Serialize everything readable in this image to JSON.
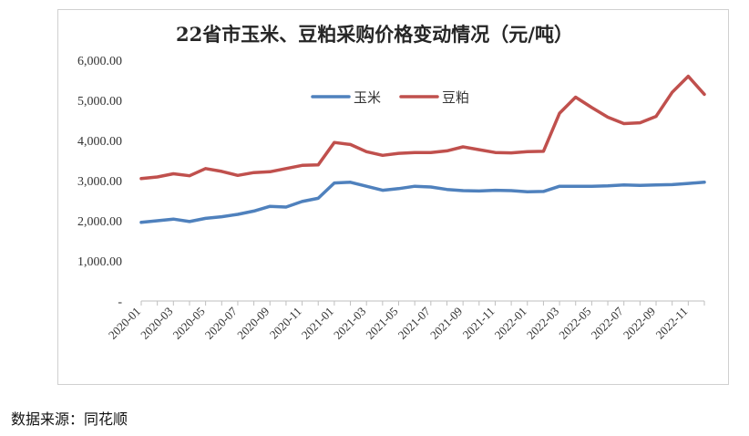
{
  "page": {
    "source_note": "数据来源：同花顺"
  },
  "chart_data": {
    "type": "line",
    "title": "22省市玉米、豆粕采购价格变动情况（元/吨）",
    "xlabel": "",
    "ylabel": "",
    "ylim": [
      0,
      6000
    ],
    "y_ticks": [
      {
        "value": 0,
        "label": "-"
      },
      {
        "value": 1000,
        "label": "1,000.00"
      },
      {
        "value": 2000,
        "label": "2,000.00"
      },
      {
        "value": 3000,
        "label": "3,000.00"
      },
      {
        "value": 4000,
        "label": "4,000.00"
      },
      {
        "value": 5000,
        "label": "5,000.00"
      },
      {
        "value": 6000,
        "label": "6,000.00"
      }
    ],
    "x_tick_labels": [
      "2020-01",
      "2020-03",
      "2020-05",
      "2020-07",
      "2020-09",
      "2020-11",
      "2021-01",
      "2021-03",
      "2021-05",
      "2021-07",
      "2021-09",
      "2021-11",
      "2022-01",
      "2022-03",
      "2022-05",
      "2022-07",
      "2022-09",
      "2022-11"
    ],
    "x_months": [
      "2020-01",
      "2020-02",
      "2020-03",
      "2020-04",
      "2020-05",
      "2020-06",
      "2020-07",
      "2020-08",
      "2020-09",
      "2020-10",
      "2020-11",
      "2020-12",
      "2021-01",
      "2021-02",
      "2021-03",
      "2021-04",
      "2021-05",
      "2021-06",
      "2021-07",
      "2021-08",
      "2021-09",
      "2021-10",
      "2021-11",
      "2021-12",
      "2022-01",
      "2022-02",
      "2022-03",
      "2022-04",
      "2022-05",
      "2022-06",
      "2022-07",
      "2022-08",
      "2022-09",
      "2022-10",
      "2022-11",
      "2022-12"
    ],
    "grid": false,
    "legend_position": "top-center",
    "series": [
      {
        "name": "玉米",
        "color": "#4f81bd",
        "values": [
          1960,
          2000,
          2040,
          1980,
          2060,
          2100,
          2160,
          2240,
          2360,
          2340,
          2480,
          2560,
          2940,
          2960,
          2860,
          2760,
          2800,
          2860,
          2840,
          2780,
          2750,
          2740,
          2760,
          2750,
          2720,
          2730,
          2860,
          2860,
          2860,
          2870,
          2890,
          2880,
          2890,
          2900,
          2930,
          2960
        ]
      },
      {
        "name": "豆粕",
        "color": "#c0504d",
        "values": [
          3050,
          3090,
          3170,
          3120,
          3300,
          3230,
          3130,
          3200,
          3220,
          3300,
          3380,
          3390,
          3950,
          3900,
          3720,
          3630,
          3680,
          3700,
          3700,
          3740,
          3840,
          3770,
          3700,
          3690,
          3720,
          3730,
          4680,
          5080,
          4820,
          4580,
          4420,
          4440,
          4600,
          5200,
          5600,
          5150
        ]
      }
    ]
  }
}
